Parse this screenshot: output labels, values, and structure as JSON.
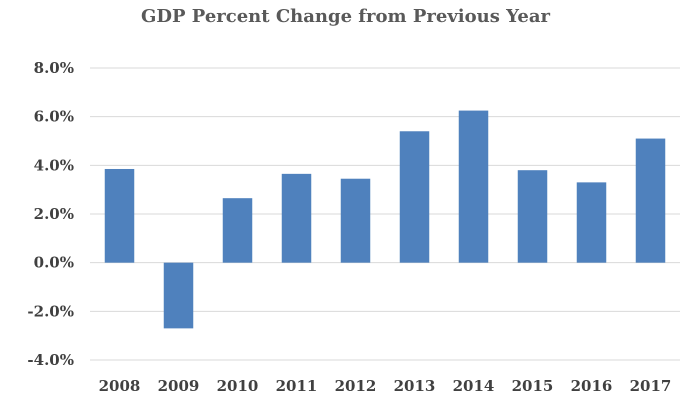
{
  "chart_data": {
    "type": "bar",
    "title": "GDP Percent Change from Previous Year",
    "xlabel": "",
    "ylabel": "",
    "categories": [
      "2008",
      "2009",
      "2010",
      "2011",
      "2012",
      "2013",
      "2014",
      "2015",
      "2016",
      "2017"
    ],
    "values": [
      3.85,
      -2.7,
      2.65,
      3.65,
      3.45,
      5.4,
      6.25,
      3.8,
      3.3,
      5.1
    ],
    "ylim": [
      -4,
      8
    ],
    "yticks": [
      8,
      6,
      4,
      2,
      0,
      -2,
      -4
    ],
    "ytick_labels": [
      "8.0%",
      "6.0%",
      "4.0%",
      "2.0%",
      "0.0%",
      "-2.0%",
      "-4.0%"
    ],
    "grid": true,
    "legend": "none",
    "colors": {
      "bar": "#4f81bd",
      "grid": "#d9d9d9",
      "text": "#404040",
      "title": "#595959"
    }
  }
}
